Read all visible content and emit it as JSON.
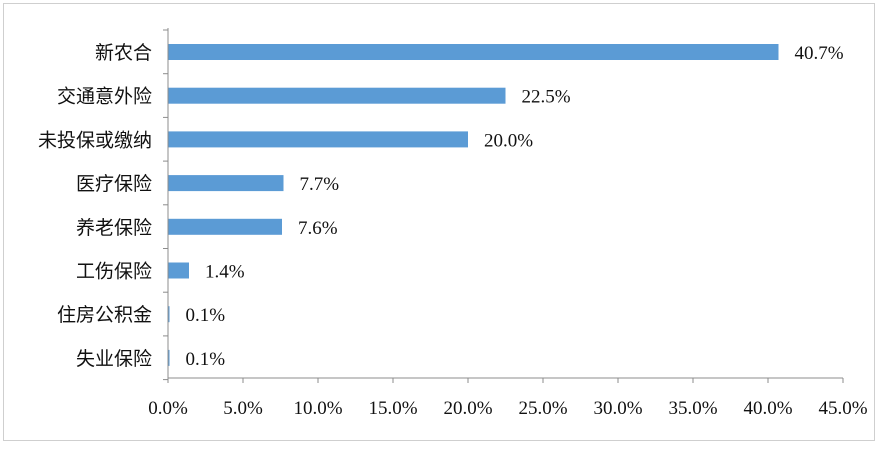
{
  "chart_data": {
    "type": "bar",
    "orientation": "horizontal",
    "categories": [
      "新农合",
      "交通意外险",
      "未投保或缴纳",
      "医疗保险",
      "养老保险",
      "工伤保险",
      "住房公积金",
      "失业保险"
    ],
    "values": [
      40.7,
      22.5,
      20.0,
      7.7,
      7.6,
      1.4,
      0.1,
      0.1
    ],
    "value_labels": [
      "40.7%",
      "22.5%",
      "20.0%",
      "7.7%",
      "7.6%",
      "1.4%",
      "0.1%",
      "0.1%"
    ],
    "xlim": [
      0,
      45
    ],
    "x_ticks": [
      0,
      5,
      10,
      15,
      20,
      25,
      30,
      35,
      40,
      45
    ],
    "x_tick_labels": [
      "0.0%",
      "5.0%",
      "10.0%",
      "15.0%",
      "20.0%",
      "25.0%",
      "30.0%",
      "35.0%",
      "40.0%",
      "45.0%"
    ],
    "bar_color": "#5b9bd5",
    "grid": false,
    "legend": "none"
  }
}
